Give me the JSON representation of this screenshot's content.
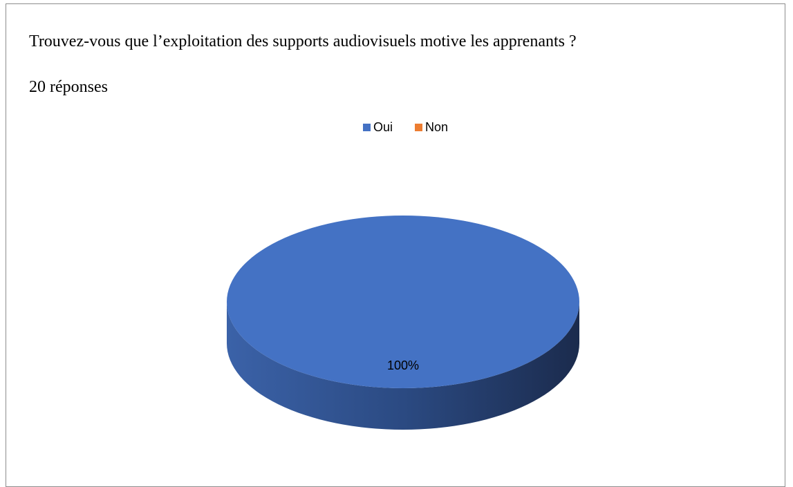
{
  "chart_data": {
    "type": "pie",
    "title": "Trouvez-vous que l’exploitation des supports audiovisuels motive les apprenants ?",
    "subtitle": "20 réponses",
    "categories": [
      "Oui",
      "Non"
    ],
    "values": [
      100,
      0
    ],
    "value_labels": [
      "100%",
      null
    ],
    "colors": [
      "#4472c4",
      "#ed7d31"
    ],
    "legend": "top"
  }
}
